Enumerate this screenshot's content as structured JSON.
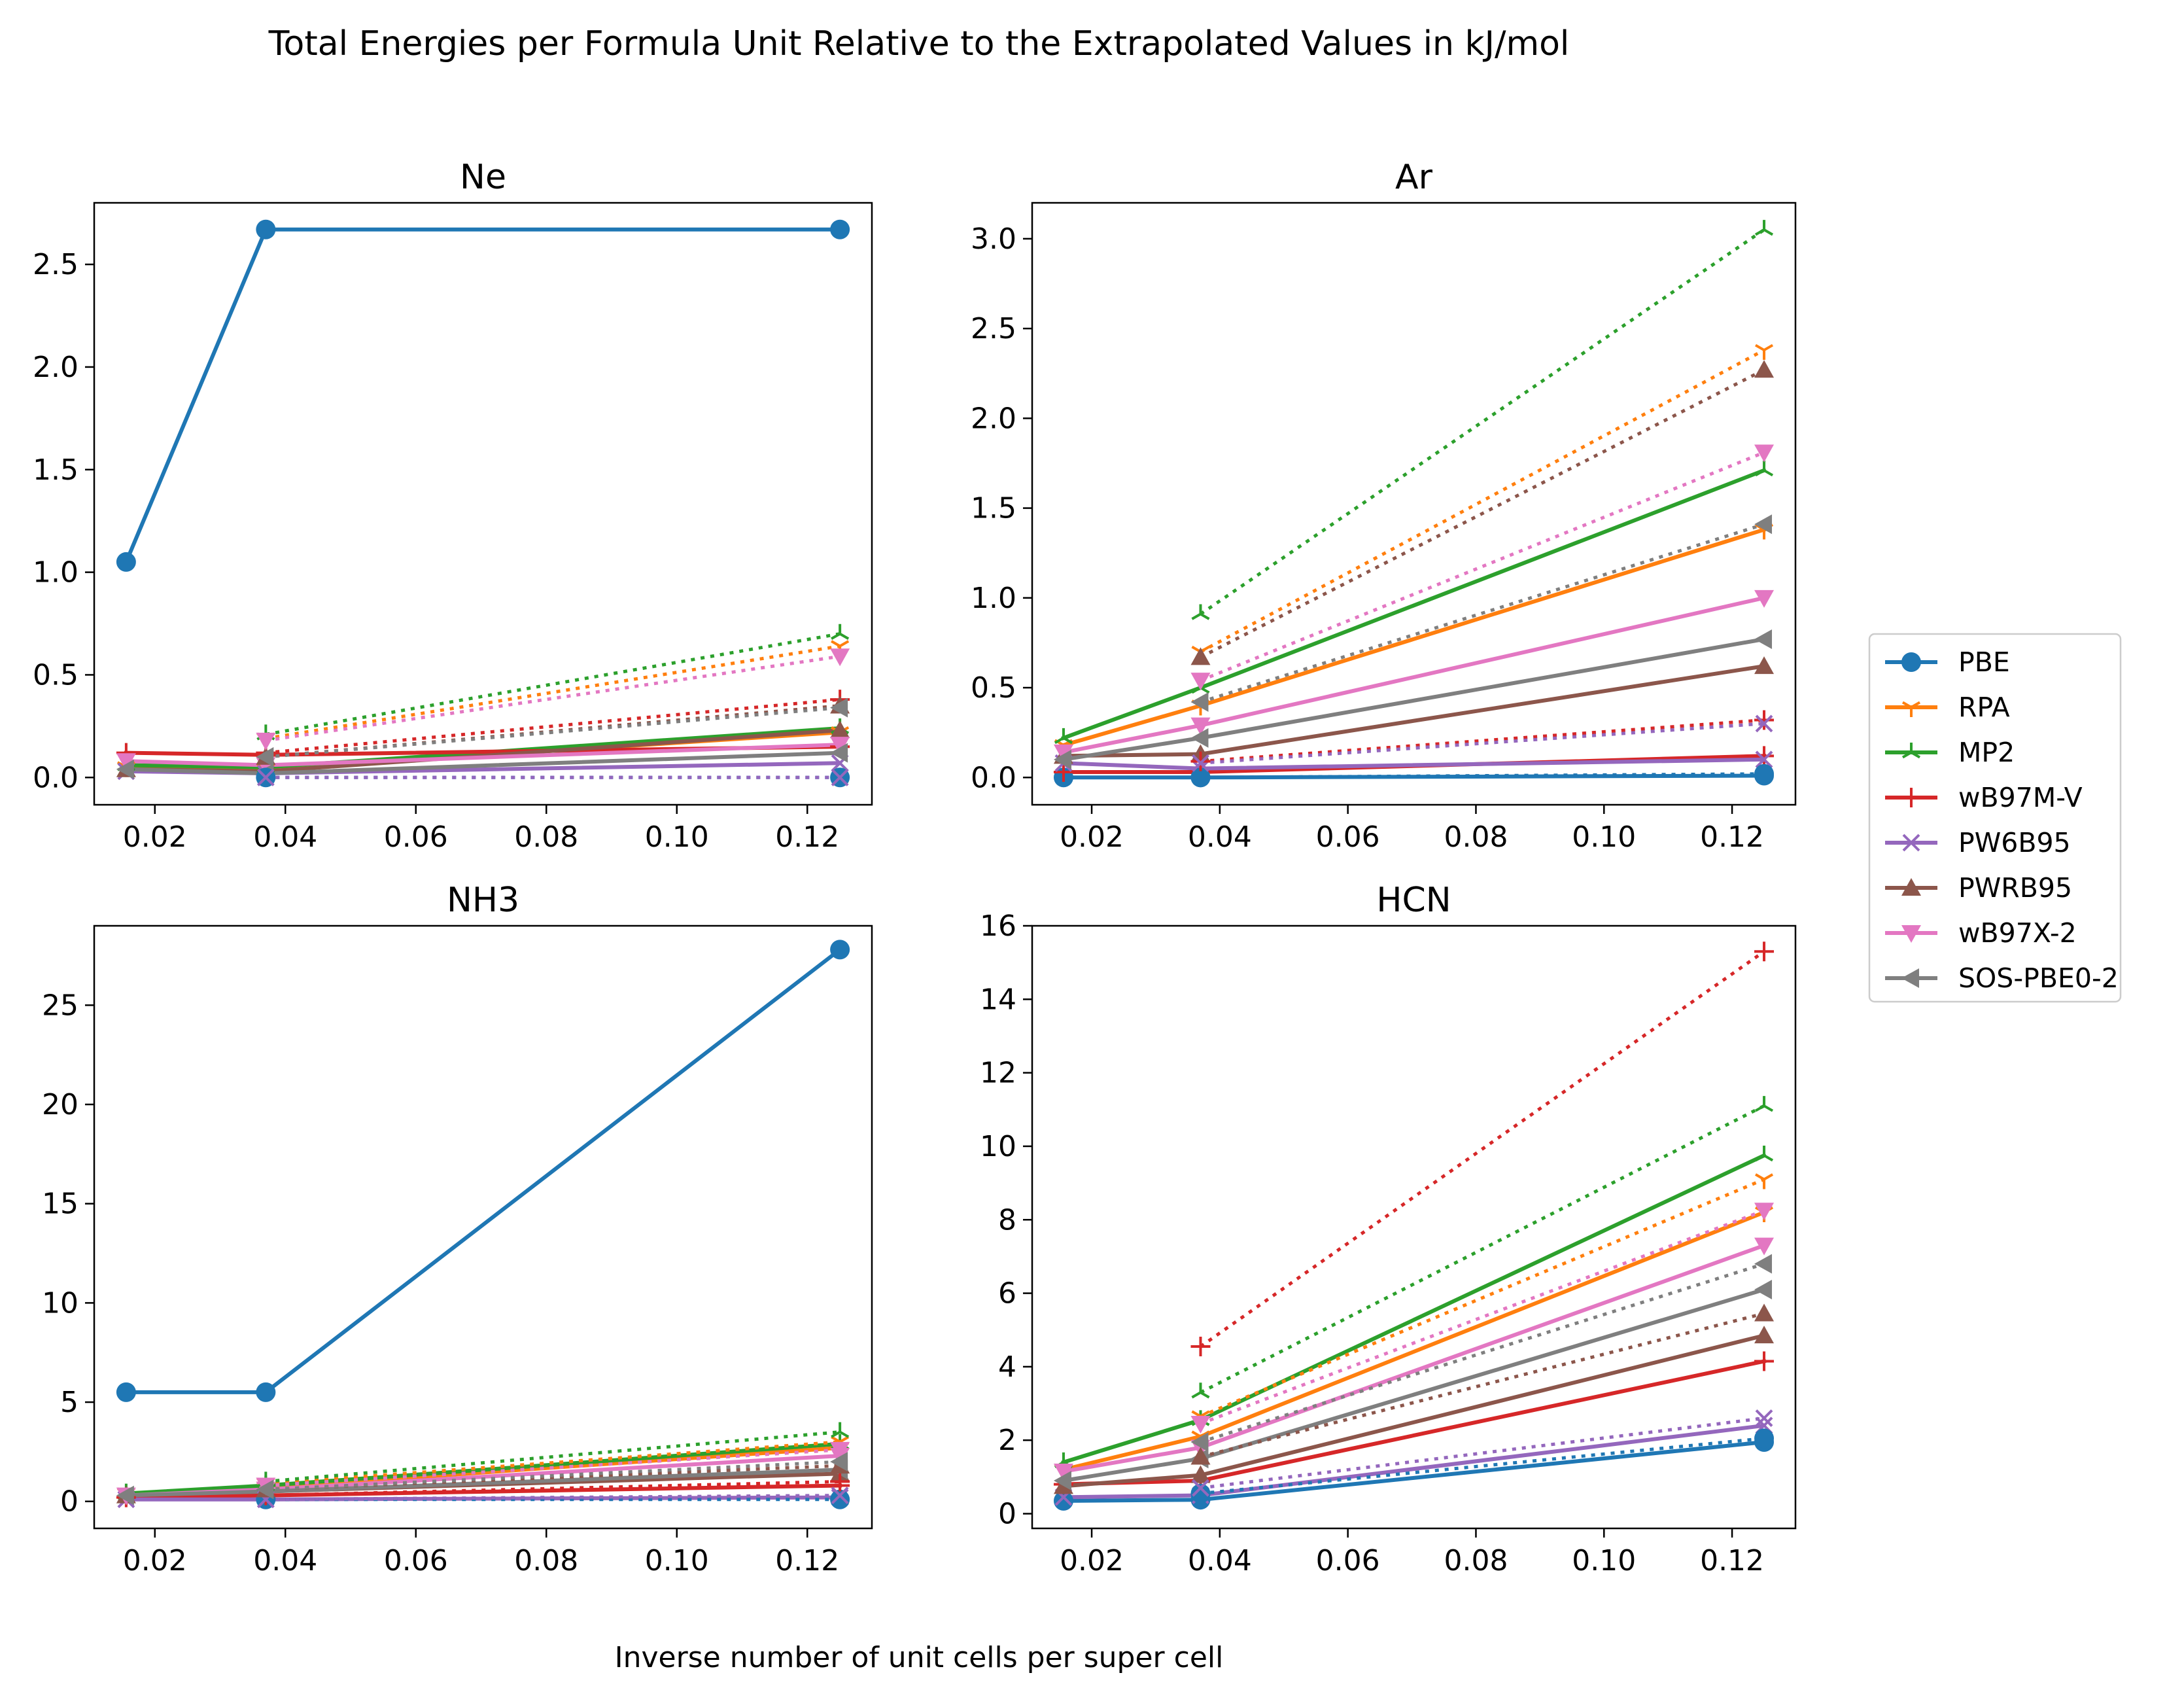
{
  "title": "Total Energies per Formula Unit Relative to the Extrapolated Values in kJ/mol",
  "xlabel": "Inverse number of unit cells per super cell",
  "legend": [
    {
      "name": "PBE",
      "color": "#1f77b4",
      "marker": "circle"
    },
    {
      "name": "RPA",
      "color": "#ff7f0e",
      "marker": "tri-down"
    },
    {
      "name": "MP2",
      "color": "#2ca02c",
      "marker": "tri-up"
    },
    {
      "name": "wB97M-V",
      "color": "#d62728",
      "marker": "plus"
    },
    {
      "name": "PW6B95",
      "color": "#9467bd",
      "marker": "x"
    },
    {
      "name": "PWRB95",
      "color": "#8c564b",
      "marker": "triangle-up"
    },
    {
      "name": "wB97X-2",
      "color": "#e377c2",
      "marker": "triangle-down"
    },
    {
      "name": "SOS-PBE0-2",
      "color": "#7f7f7f",
      "marker": "triangle-left"
    }
  ],
  "chart_data": [
    {
      "type": "line",
      "title": "Ne",
      "x": [
        0.0156,
        0.037,
        0.125
      ],
      "xlim": [
        0.0107,
        0.1299
      ],
      "xticks": [
        0.02,
        0.04,
        0.06,
        0.08,
        0.1,
        0.12
      ],
      "xtick_labels": [
        "0.02",
        "0.04",
        "0.06",
        "0.08",
        "0.10",
        "0.12"
      ],
      "ylim": [
        -0.133,
        2.8
      ],
      "yticks": [
        0.0,
        0.5,
        1.0,
        1.5,
        2.0,
        2.5
      ],
      "ytick_labels": [
        "0.0",
        "0.5",
        "1.0",
        "1.5",
        "2.0",
        "2.5"
      ],
      "series": [
        {
          "name": "PBE",
          "style": "solid",
          "values": [
            1.05,
            2.67,
            2.67
          ]
        },
        {
          "name": "RPA",
          "style": "solid",
          "values": [
            0.05,
            0.04,
            0.22
          ]
        },
        {
          "name": "MP2",
          "style": "solid",
          "values": [
            0.06,
            0.05,
            0.24
          ]
        },
        {
          "name": "wB97M-V",
          "style": "solid",
          "values": [
            0.12,
            0.11,
            0.15
          ]
        },
        {
          "name": "PW6B95",
          "style": "solid",
          "values": [
            0.03,
            0.02,
            0.07
          ]
        },
        {
          "name": "PWRB95",
          "style": "solid",
          "values": [
            0.04,
            0.03,
            0.23
          ]
        },
        {
          "name": "wB97X-2",
          "style": "solid",
          "values": [
            0.08,
            0.06,
            0.16
          ]
        },
        {
          "name": "SOS-PBE0-2",
          "style": "solid",
          "values": [
            0.04,
            0.02,
            0.12
          ]
        },
        {
          "name": "PBE",
          "style": "dotted",
          "values": [
            null,
            0.0,
            0.0
          ]
        },
        {
          "name": "RPA",
          "style": "dotted",
          "values": [
            null,
            0.19,
            0.64
          ]
        },
        {
          "name": "MP2",
          "style": "dotted",
          "values": [
            null,
            0.21,
            0.7
          ]
        },
        {
          "name": "wB97M-V",
          "style": "dotted",
          "values": [
            null,
            0.12,
            0.38
          ]
        },
        {
          "name": "PW6B95",
          "style": "dotted",
          "values": [
            null,
            0.0,
            0.0
          ]
        },
        {
          "name": "PWRB95",
          "style": "dotted",
          "values": [
            null,
            0.1,
            0.35
          ]
        },
        {
          "name": "wB97X-2",
          "style": "dotted",
          "values": [
            null,
            0.18,
            0.59
          ]
        },
        {
          "name": "SOS-PBE0-2",
          "style": "dotted",
          "values": [
            null,
            0.1,
            0.34
          ]
        }
      ]
    },
    {
      "type": "line",
      "title": "Ar",
      "x": [
        0.0156,
        0.037,
        0.125
      ],
      "xlim": [
        0.0107,
        0.1299
      ],
      "xticks": [
        0.02,
        0.04,
        0.06,
        0.08,
        0.1,
        0.12
      ],
      "xtick_labels": [
        "0.02",
        "0.04",
        "0.06",
        "0.08",
        "0.10",
        "0.12"
      ],
      "ylim": [
        -0.152,
        3.2
      ],
      "yticks": [
        0.0,
        0.5,
        1.0,
        1.5,
        2.0,
        2.5,
        3.0
      ],
      "ytick_labels": [
        "0.0",
        "0.5",
        "1.0",
        "1.5",
        "2.0",
        "2.5",
        "3.0"
      ],
      "series": [
        {
          "name": "PBE",
          "style": "solid",
          "values": [
            0.0,
            0.0,
            0.01
          ]
        },
        {
          "name": "RPA",
          "style": "solid",
          "values": [
            0.18,
            0.4,
            1.38
          ]
        },
        {
          "name": "MP2",
          "style": "solid",
          "values": [
            0.22,
            0.5,
            1.71
          ]
        },
        {
          "name": "wB97M-V",
          "style": "solid",
          "values": [
            0.03,
            0.03,
            0.12
          ]
        },
        {
          "name": "PW6B95",
          "style": "solid",
          "values": [
            0.08,
            0.05,
            0.1
          ]
        },
        {
          "name": "PWRB95",
          "style": "solid",
          "values": [
            0.12,
            0.13,
            0.62
          ]
        },
        {
          "name": "wB97X-2",
          "style": "solid",
          "values": [
            0.14,
            0.29,
            1.0
          ]
        },
        {
          "name": "SOS-PBE0-2",
          "style": "solid",
          "values": [
            0.1,
            0.22,
            0.77
          ]
        },
        {
          "name": "PBE",
          "style": "dotted",
          "values": [
            null,
            0.0,
            0.02
          ]
        },
        {
          "name": "RPA",
          "style": "dotted",
          "values": [
            null,
            0.7,
            2.38
          ]
        },
        {
          "name": "MP2",
          "style": "dotted",
          "values": [
            null,
            0.91,
            3.05
          ]
        },
        {
          "name": "wB97M-V",
          "style": "dotted",
          "values": [
            null,
            0.09,
            0.32
          ]
        },
        {
          "name": "PW6B95",
          "style": "dotted",
          "values": [
            null,
            0.08,
            0.3
          ]
        },
        {
          "name": "PWRB95",
          "style": "dotted",
          "values": [
            null,
            0.67,
            2.27
          ]
        },
        {
          "name": "wB97X-2",
          "style": "dotted",
          "values": [
            null,
            0.54,
            1.81
          ]
        },
        {
          "name": "SOS-PBE0-2",
          "style": "dotted",
          "values": [
            null,
            0.42,
            1.41
          ]
        }
      ]
    },
    {
      "type": "line",
      "title": "NH3",
      "x": [
        0.0156,
        0.037,
        0.125
      ],
      "xlim": [
        0.0107,
        0.1299
      ],
      "xticks": [
        0.02,
        0.04,
        0.06,
        0.08,
        0.1,
        0.12
      ],
      "xtick_labels": [
        "0.02",
        "0.04",
        "0.06",
        "0.08",
        "0.10",
        "0.12"
      ],
      "ylim": [
        -1.36,
        29.0
      ],
      "yticks": [
        0,
        5,
        10,
        15,
        20,
        25
      ],
      "ytick_labels": [
        "0",
        "5",
        "10",
        "15",
        "20",
        "25"
      ],
      "series": [
        {
          "name": "PBE",
          "style": "solid",
          "values": [
            5.5,
            5.5,
            27.8
          ]
        },
        {
          "name": "RPA",
          "style": "solid",
          "values": [
            0.4,
            0.7,
            2.7
          ]
        },
        {
          "name": "MP2",
          "style": "solid",
          "values": [
            0.4,
            0.8,
            2.9
          ]
        },
        {
          "name": "wB97M-V",
          "style": "solid",
          "values": [
            0.2,
            0.3,
            0.8
          ]
        },
        {
          "name": "PW6B95",
          "style": "solid",
          "values": [
            0.1,
            0.1,
            0.2
          ]
        },
        {
          "name": "PWRB95",
          "style": "solid",
          "values": [
            0.3,
            0.5,
            1.4
          ]
        },
        {
          "name": "wB97X-2",
          "style": "solid",
          "values": [
            0.3,
            0.6,
            2.3
          ]
        },
        {
          "name": "SOS-PBE0-2",
          "style": "solid",
          "values": [
            0.3,
            0.5,
            1.6
          ]
        },
        {
          "name": "PBE",
          "style": "dotted",
          "values": [
            null,
            0.1,
            0.1
          ]
        },
        {
          "name": "RPA",
          "style": "dotted",
          "values": [
            null,
            0.9,
            3.0
          ]
        },
        {
          "name": "MP2",
          "style": "dotted",
          "values": [
            null,
            1.0,
            3.5
          ]
        },
        {
          "name": "wB97M-V",
          "style": "dotted",
          "values": [
            null,
            0.3,
            1.0
          ]
        },
        {
          "name": "PW6B95",
          "style": "dotted",
          "values": [
            null,
            0.1,
            0.3
          ]
        },
        {
          "name": "PWRB95",
          "style": "dotted",
          "values": [
            null,
            0.6,
            1.8
          ]
        },
        {
          "name": "wB97X-2",
          "style": "dotted",
          "values": [
            null,
            0.8,
            2.6
          ]
        },
        {
          "name": "SOS-PBE0-2",
          "style": "dotted",
          "values": [
            null,
            0.6,
            2.0
          ]
        }
      ]
    },
    {
      "type": "line",
      "title": "HCN",
      "x": [
        0.0156,
        0.037,
        0.125
      ],
      "xlim": [
        0.0107,
        0.1299
      ],
      "xticks": [
        0.02,
        0.04,
        0.06,
        0.08,
        0.1,
        0.12
      ],
      "xtick_labels": [
        "0.02",
        "0.04",
        "0.06",
        "0.08",
        "0.10",
        "0.12"
      ],
      "ylim": [
        -0.4,
        16.0
      ],
      "yticks": [
        0,
        2,
        4,
        6,
        8,
        10,
        12,
        14,
        16
      ],
      "ytick_labels": [
        "0",
        "2",
        "4",
        "6",
        "8",
        "10",
        "12",
        "14",
        "16"
      ],
      "series": [
        {
          "name": "PBE",
          "style": "solid",
          "values": [
            0.35,
            0.38,
            1.95
          ]
        },
        {
          "name": "RPA",
          "style": "solid",
          "values": [
            1.2,
            2.1,
            8.2
          ]
        },
        {
          "name": "MP2",
          "style": "solid",
          "values": [
            1.4,
            2.55,
            9.75
          ]
        },
        {
          "name": "wB97M-V",
          "style": "solid",
          "values": [
            0.8,
            0.9,
            4.15
          ]
        },
        {
          "name": "PW6B95",
          "style": "solid",
          "values": [
            0.45,
            0.5,
            2.4
          ]
        },
        {
          "name": "PWRB95",
          "style": "solid",
          "values": [
            0.75,
            1.05,
            4.85
          ]
        },
        {
          "name": "wB97X-2",
          "style": "solid",
          "values": [
            1.15,
            1.8,
            7.3
          ]
        },
        {
          "name": "SOS-PBE0-2",
          "style": "solid",
          "values": [
            0.9,
            1.5,
            6.1
          ]
        },
        {
          "name": "PBE",
          "style": "dotted",
          "values": [
            null,
            0.55,
            2.05
          ]
        },
        {
          "name": "RPA",
          "style": "dotted",
          "values": [
            null,
            2.65,
            9.1
          ]
        },
        {
          "name": "MP2",
          "style": "dotted",
          "values": [
            null,
            3.3,
            11.1
          ]
        },
        {
          "name": "wB97M-V",
          "style": "dotted",
          "values": [
            null,
            4.55,
            15.3
          ]
        },
        {
          "name": "PW6B95",
          "style": "dotted",
          "values": [
            null,
            0.7,
            2.6
          ]
        },
        {
          "name": "PWRB95",
          "style": "dotted",
          "values": [
            null,
            1.55,
            5.45
          ]
        },
        {
          "name": "wB97X-2",
          "style": "dotted",
          "values": [
            null,
            2.45,
            8.25
          ]
        },
        {
          "name": "SOS-PBE0-2",
          "style": "dotted",
          "values": [
            null,
            1.95,
            6.8
          ]
        }
      ]
    }
  ]
}
